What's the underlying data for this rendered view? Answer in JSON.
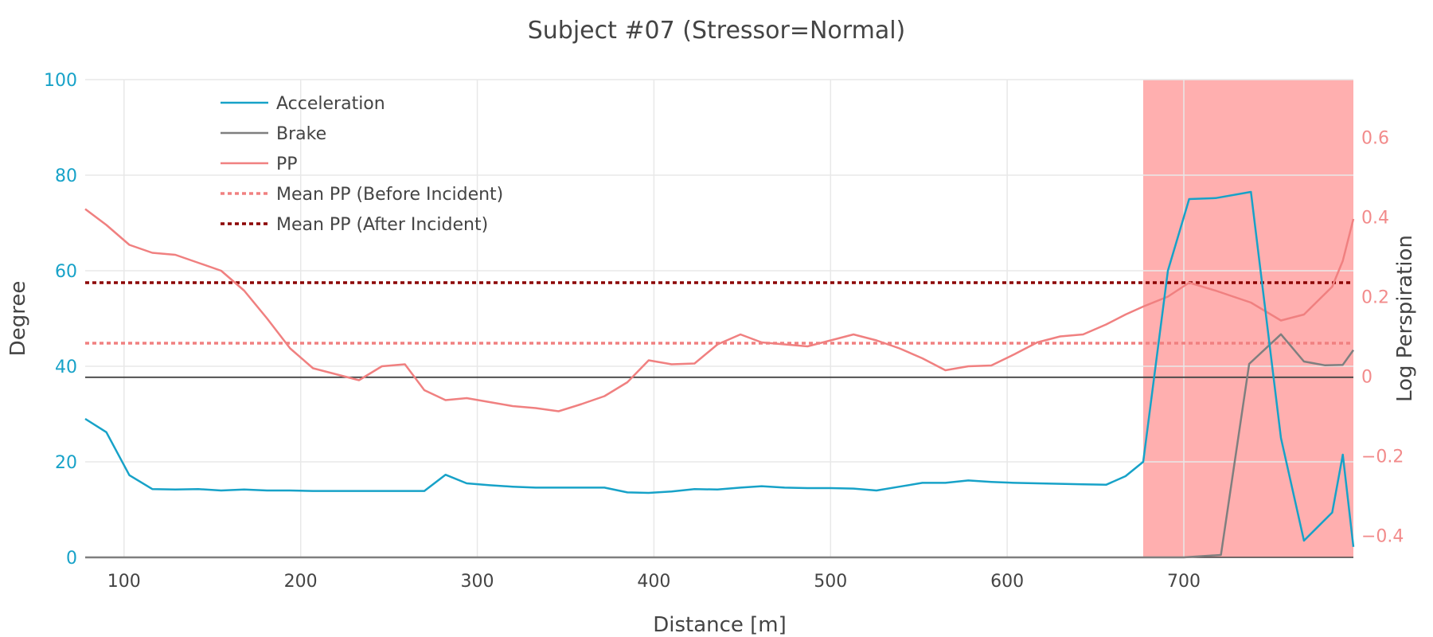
{
  "chart_data": {
    "type": "line",
    "title": "Subject #07 (Stressor=Normal)",
    "xlabel": "Distance [m]",
    "ylabel_left": "Degree",
    "ylabel_right": "Log Perspiration",
    "xlim": [
      78,
      796
    ],
    "ylim_left": [
      0,
      100
    ],
    "ylim_right": [
      -0.455,
      0.745
    ],
    "x_ticks": [
      "100",
      "200",
      "300",
      "400",
      "500",
      "600",
      "700"
    ],
    "y_left_ticks": [
      "0",
      "20",
      "40",
      "60",
      "80",
      "100"
    ],
    "y_right_ticks": [
      "−0.4",
      "−0.2",
      "0",
      "0.2",
      "0.4",
      "0.6"
    ],
    "grid": true,
    "legend_position": "top-left",
    "highlight_region": {
      "x_start": 677,
      "x_end": 796,
      "color": "#ff6e6e"
    },
    "colors": {
      "acceleration": "#17a2c8",
      "brake": "#7f7f7f",
      "pp": "#f08080",
      "mean_before": "#f08080",
      "mean_after": "#8b0000",
      "left_axis": "#17a2c8",
      "right_axis": "#f28b8b"
    },
    "series": [
      {
        "name": "Acceleration",
        "axis": "left",
        "x": [
          78,
          90,
          103,
          116,
          129,
          142,
          155,
          168,
          181,
          194,
          207,
          220,
          233,
          246,
          259,
          270,
          282,
          294,
          307,
          320,
          333,
          346,
          359,
          372,
          385,
          397,
          410,
          423,
          436,
          449,
          461,
          474,
          487,
          500,
          513,
          526,
          539,
          552,
          565,
          578,
          591,
          604,
          617,
          630,
          643,
          656,
          667,
          677,
          691,
          703,
          718,
          738,
          755,
          768,
          784,
          790,
          796
        ],
        "y": [
          29,
          26.2,
          17.2,
          14.3,
          14.2,
          14.3,
          14.0,
          14.2,
          14.0,
          14.0,
          13.9,
          13.9,
          13.9,
          13.9,
          13.9,
          13.9,
          17.3,
          15.5,
          15.1,
          14.8,
          14.6,
          14.6,
          14.6,
          14.6,
          13.6,
          13.5,
          13.8,
          14.3,
          14.2,
          14.6,
          14.9,
          14.6,
          14.5,
          14.5,
          14.4,
          14.0,
          14.8,
          15.6,
          15.6,
          16.1,
          15.8,
          15.6,
          15.5,
          15.4,
          15.3,
          15.2,
          17.0,
          20.0,
          60,
          75,
          75.2,
          76.5,
          25,
          3.5,
          9.4,
          21.5,
          2.2
        ]
      },
      {
        "name": "Brake",
        "axis": "left",
        "x": [
          78,
          700,
          721,
          737,
          755,
          768,
          780,
          790,
          796
        ],
        "y": [
          0,
          0,
          0.5,
          40.5,
          46.7,
          41,
          40.2,
          40.3,
          43.4
        ]
      },
      {
        "name": "PP",
        "axis": "right",
        "x": [
          78,
          90,
          103,
          116,
          129,
          142,
          155,
          168,
          181,
          194,
          207,
          220,
          233,
          246,
          259,
          270,
          282,
          294,
          307,
          320,
          333,
          346,
          359,
          372,
          385,
          397,
          410,
          423,
          436,
          449,
          461,
          474,
          487,
          500,
          513,
          526,
          539,
          552,
          565,
          578,
          591,
          604,
          617,
          630,
          643,
          656,
          667,
          677,
          691,
          703,
          718,
          738,
          755,
          768,
          784,
          790,
          796
        ],
        "y": [
          0.42,
          0.38,
          0.33,
          0.31,
          0.305,
          0.285,
          0.265,
          0.215,
          0.145,
          0.07,
          0.02,
          0.005,
          -0.01,
          0.025,
          0.03,
          -0.035,
          -0.06,
          -0.055,
          -0.065,
          -0.075,
          -0.08,
          -0.088,
          -0.07,
          -0.05,
          -0.015,
          0.04,
          0.03,
          0.032,
          0.08,
          0.105,
          0.085,
          0.08,
          0.075,
          0.09,
          0.105,
          0.09,
          0.07,
          0.045,
          0.015,
          0.025,
          0.027,
          0.055,
          0.085,
          0.1,
          0.105,
          0.13,
          0.155,
          0.175,
          0.2,
          0.235,
          0.215,
          0.185,
          0.14,
          0.155,
          0.225,
          0.29,
          0.395
        ]
      },
      {
        "name": "Mean PP (Before Incident)",
        "axis": "right",
        "style": "dotted",
        "x": [
          78,
          796
        ],
        "y": [
          0.083,
          0.083
        ]
      },
      {
        "name": "Mean PP (After Incident)",
        "axis": "right",
        "style": "dotted",
        "x": [
          78,
          796
        ],
        "y": [
          0.235,
          0.235
        ]
      }
    ],
    "reference_lines": [
      {
        "axis": "left",
        "y": 37.7,
        "color": "#444444"
      }
    ]
  }
}
